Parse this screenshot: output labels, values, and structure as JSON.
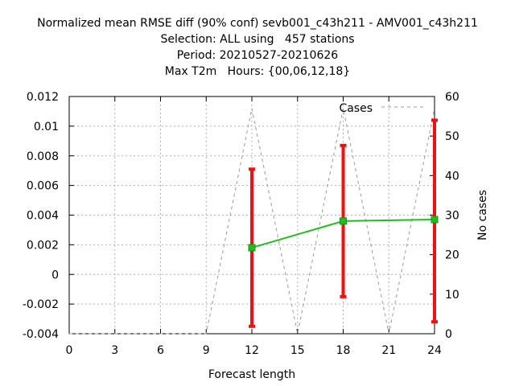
{
  "chart_data": {
    "type": "line",
    "title_lines": [
      "Normalized mean RMSE diff (90% conf) sevb001_c43h211 - AMV001_c43h211",
      "Selection: ALL using   457 stations",
      "Period: 20210527-20210626",
      "Max T2m   Hours: {00,06,12,18}"
    ],
    "xlabel": "Forecast length",
    "ylabel_left": "",
    "ylabel_right": "No cases",
    "x_ticks": [
      0,
      3,
      6,
      9,
      12,
      15,
      18,
      21,
      24
    ],
    "x_tick_labels": [
      "0",
      "3",
      "6",
      "9",
      "12",
      "15",
      "18",
      "21",
      "24"
    ],
    "xlim": [
      0,
      24
    ],
    "y_ticks": [
      -0.004,
      -0.002,
      0,
      0.002,
      0.004,
      0.006,
      0.008,
      0.01,
      0.012
    ],
    "y_tick_labels": [
      "-0.004",
      "-0.002",
      "0",
      "0.002",
      "0.004",
      "0.006",
      "0.008",
      "0.01",
      "0.012"
    ],
    "ylim": [
      -0.004,
      0.012
    ],
    "y2_ticks": [
      0,
      10,
      20,
      30,
      40,
      50,
      60
    ],
    "y2_tick_labels": [
      "0",
      "10",
      "20",
      "30",
      "40",
      "50",
      "60"
    ],
    "y2lim": [
      0,
      60
    ],
    "grid": true,
    "legend_position": "top-right",
    "series": [
      {
        "name": "",
        "axis": "left",
        "color": "#22bb22",
        "x": [
          12,
          18,
          24
        ],
        "y": [
          0.0018,
          0.0036,
          0.0037
        ],
        "error_low": [
          -0.0035,
          -0.0015,
          -0.0032
        ],
        "error_high": [
          0.0071,
          0.0087,
          0.0104
        ],
        "error_color": "#ee1111"
      },
      {
        "name": "Cases",
        "axis": "right",
        "color": "#999999",
        "dash": true,
        "x": [
          0,
          1,
          2,
          3,
          4,
          5,
          6,
          7,
          8,
          9,
          12,
          15,
          18,
          21,
          24
        ],
        "y": [
          0,
          0,
          0,
          0,
          0,
          0,
          0,
          0,
          0,
          0,
          57,
          0,
          57,
          0,
          57
        ]
      }
    ]
  }
}
